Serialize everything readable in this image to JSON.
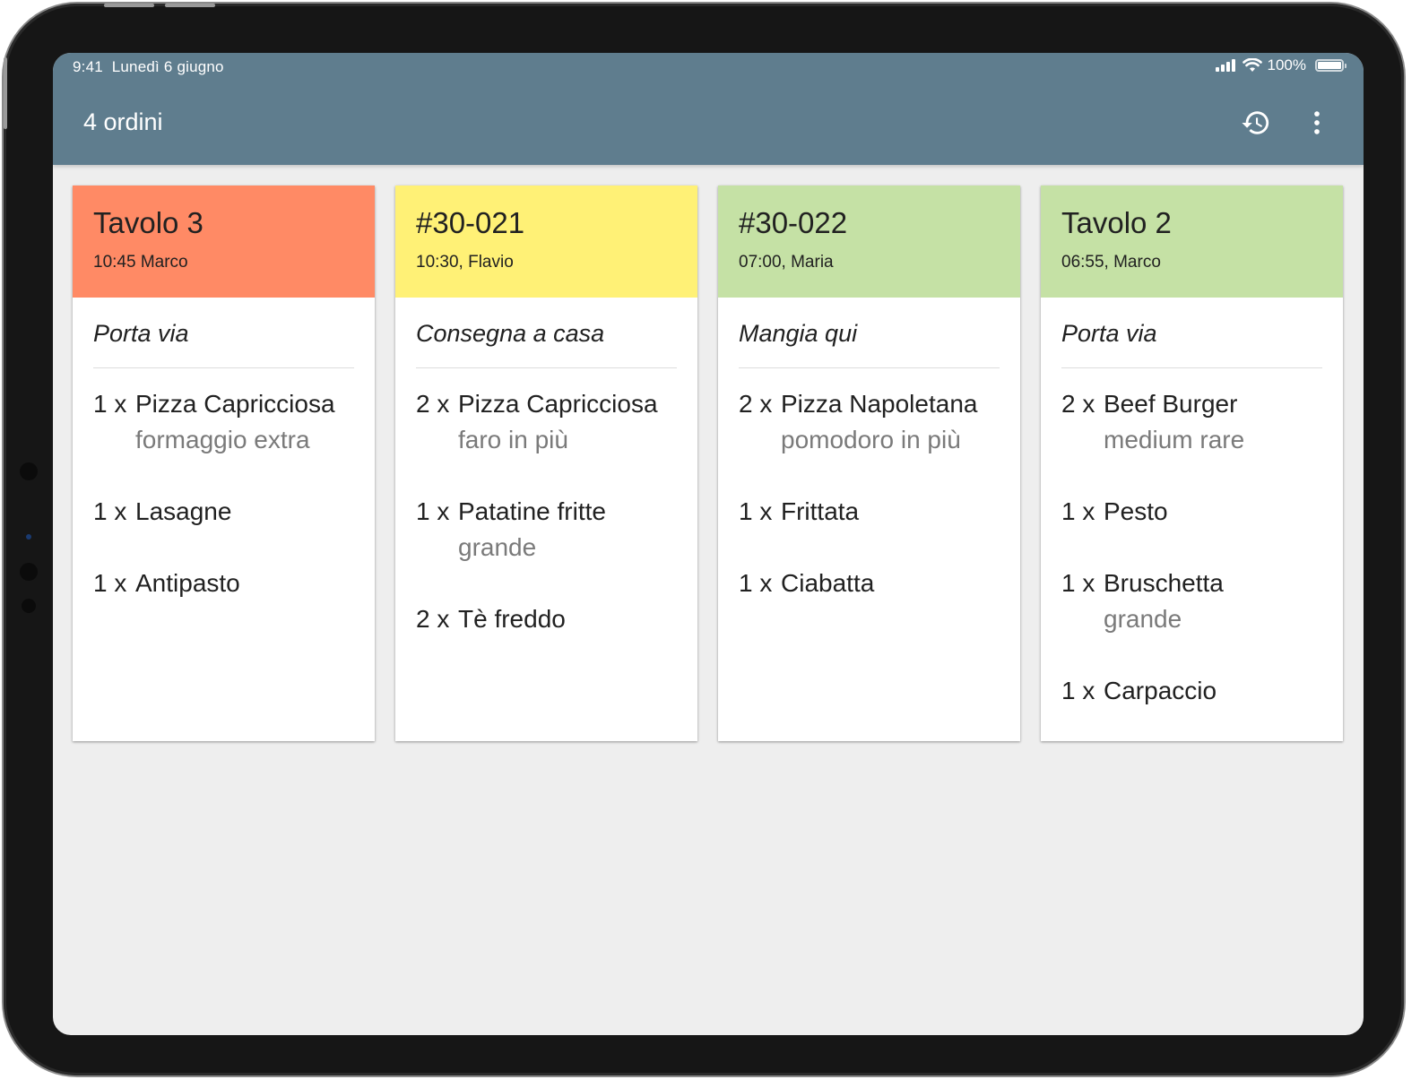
{
  "status_bar": {
    "time": "9:41",
    "date": "Lunedì 6 giugno",
    "battery": "100%"
  },
  "app_bar": {
    "title": "4 ordini",
    "history_icon": "history-icon",
    "more_icon": "more-vert-icon"
  },
  "colors": {
    "app_bar": "#5f7d8e",
    "late": "#ff8a65",
    "warning": "#fff176",
    "ok": "#c5e1a5",
    "background": "#eeeeee"
  },
  "orders": [
    {
      "title": "Tavolo 3",
      "meta": "10:45 Marco",
      "type": "Porta via",
      "color": "#ff8a65",
      "items": [
        {
          "qty": "1 x",
          "name": "Pizza Capricciosa",
          "note": "formaggio extra"
        },
        {
          "qty": "1 x",
          "name": "Lasagne",
          "note": ""
        },
        {
          "qty": "1 x",
          "name": "Antipasto",
          "note": ""
        }
      ]
    },
    {
      "title": "#30-021",
      "meta": "10:30, Flavio",
      "type": "Consegna a casa",
      "color": "#fff176",
      "items": [
        {
          "qty": "2 x",
          "name": "Pizza Capricciosa",
          "note": "faro in più"
        },
        {
          "qty": "1 x",
          "name": "Patatine fritte",
          "note": "grande"
        },
        {
          "qty": "2 x",
          "name": "Tè freddo",
          "note": ""
        }
      ]
    },
    {
      "title": "#30-022",
      "meta": "07:00, Maria",
      "type": "Mangia qui",
      "color": "#c5e1a5",
      "items": [
        {
          "qty": "2 x",
          "name": "Pizza Napoletana",
          "note": "pomodoro in più"
        },
        {
          "qty": "1 x",
          "name": "Frittata",
          "note": ""
        },
        {
          "qty": "1 x",
          "name": "Ciabatta",
          "note": ""
        }
      ]
    },
    {
      "title": "Tavolo 2",
      "meta": "06:55, Marco",
      "type": "Porta via",
      "color": "#c5e1a5",
      "items": [
        {
          "qty": "2 x",
          "name": "Beef Burger",
          "note": "medium rare"
        },
        {
          "qty": "1 x",
          "name": "Pesto",
          "note": ""
        },
        {
          "qty": "1 x",
          "name": "Bruschetta",
          "note": "grande"
        },
        {
          "qty": "1 x",
          "name": "Carpaccio",
          "note": ""
        }
      ]
    }
  ]
}
